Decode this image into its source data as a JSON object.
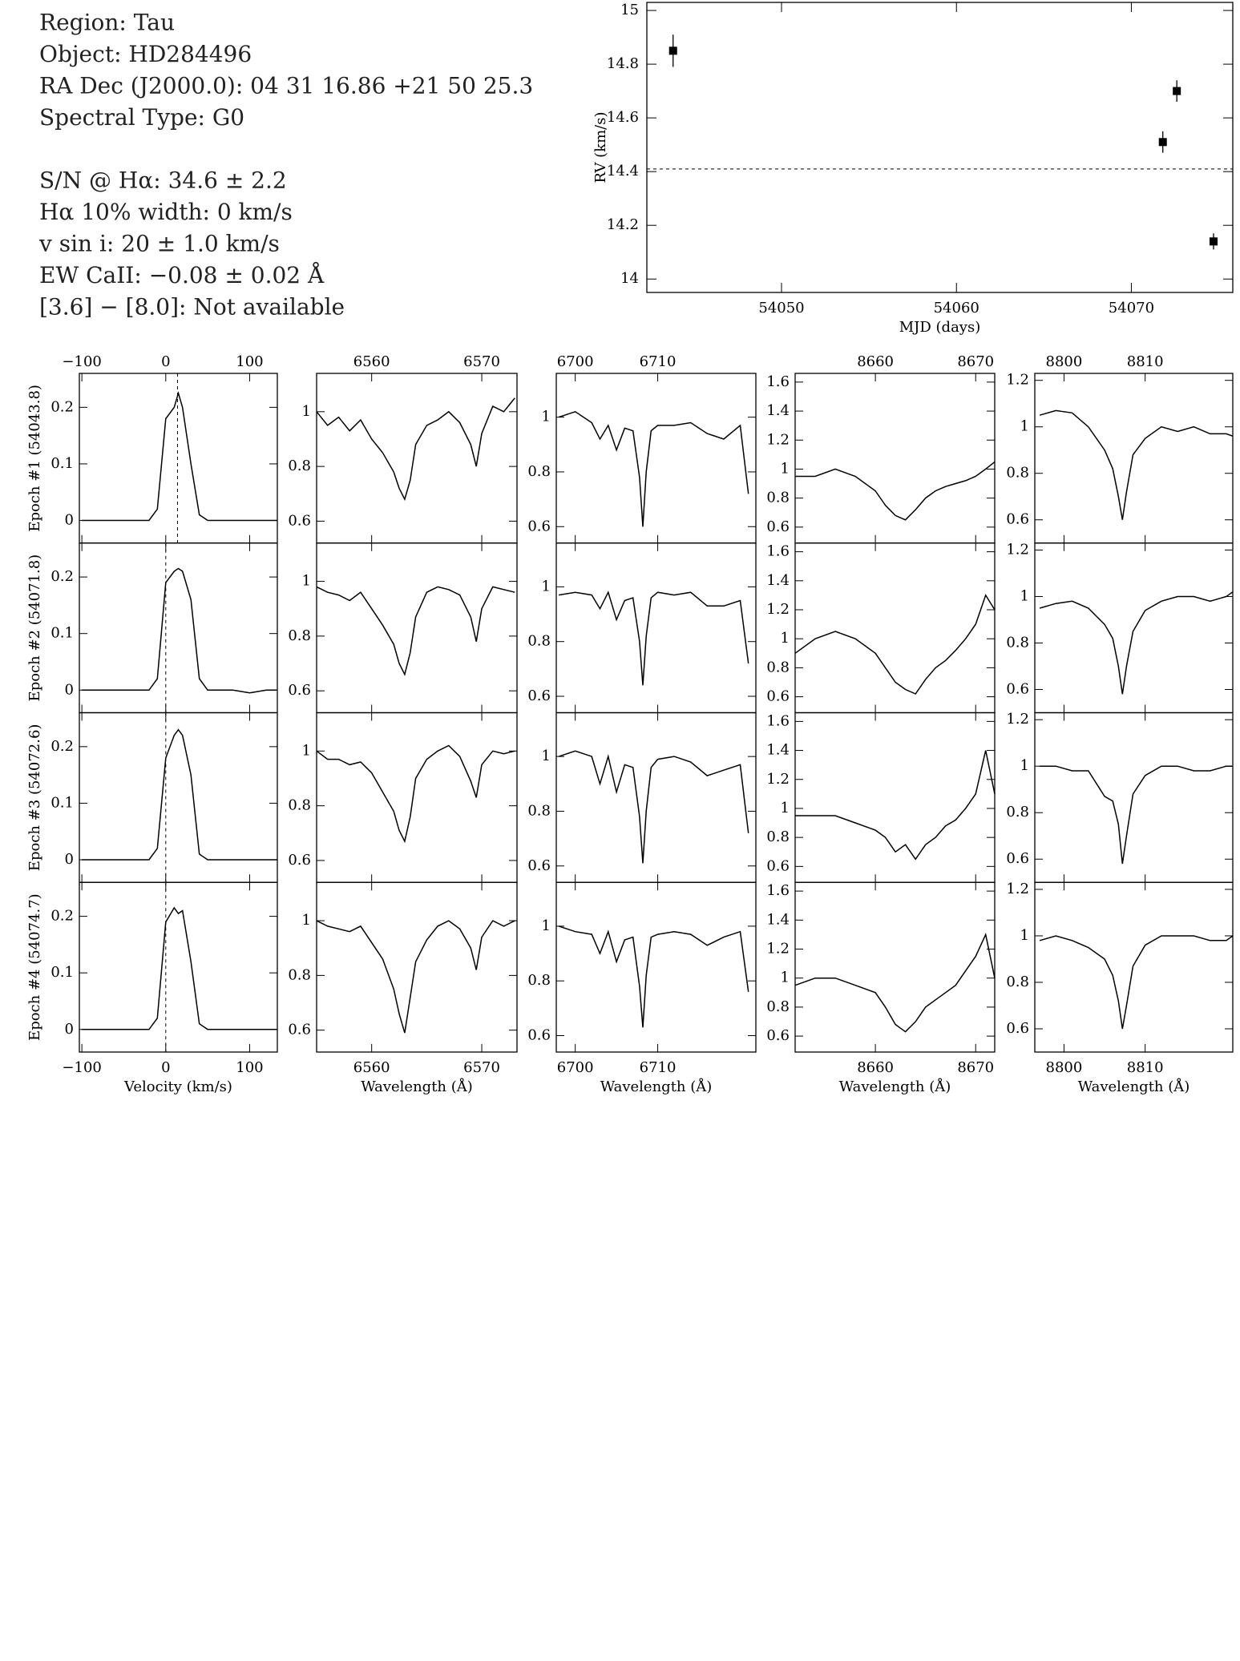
{
  "header": {
    "identification": [
      "Region: Tau",
      "Object: HD284496",
      "RA Dec (J2000.0): 04 31 16.86 +21 50 25.3",
      "Spectral Type: G0"
    ],
    "measurements": [
      "S/N @ Hα: 34.6 ± 2.2",
      "Hα 10% width: 0 km/s",
      "v sin i: 20 ± 1.0 km/s",
      "EW CaII: −0.08 ± 0.02 Å",
      "[3.6] − [8.0]: Not available"
    ]
  },
  "chart_data": [
    {
      "type": "scatter",
      "xlabel": "MJD (days)",
      "ylabel": "RV (km/s)",
      "color": "#000000",
      "x": [
        54043.8,
        54071.8,
        54072.6,
        54074.7
      ],
      "values": [
        14.85,
        14.51,
        14.7,
        14.14
      ],
      "errors": [
        0.06,
        0.04,
        0.04,
        0.03
      ],
      "hline": 14.41,
      "xlim": [
        54042.3,
        54075.8
      ],
      "xticks": [
        54050,
        54060,
        54070
      ],
      "ylim": [
        13.95,
        15.03
      ],
      "yticks": [
        14,
        14.2,
        14.4,
        14.6,
        14.8,
        15
      ]
    },
    {
      "type": "line",
      "xlabel": "Velocity (km/s)",
      "color": "#000000",
      "x": [
        -100,
        -80,
        -60,
        -40,
        -20,
        -10,
        0,
        10,
        15,
        20,
        30,
        40,
        50,
        60,
        80,
        100,
        120,
        133
      ],
      "series": [
        {
          "name": "Epoch #1 (54043.8)",
          "values": [
            0,
            0,
            0,
            0,
            0,
            0.02,
            0.18,
            0.2,
            0.225,
            0.2,
            0.1,
            0.01,
            0,
            0,
            0,
            0,
            0,
            0
          ]
        },
        {
          "name": "Epoch #2 (54071.8)",
          "values": [
            0,
            0,
            0,
            0,
            0,
            0.02,
            0.19,
            0.21,
            0.215,
            0.21,
            0.16,
            0.02,
            0,
            0,
            0,
            -0.005,
            0,
            0
          ]
        },
        {
          "name": "Epoch #3 (54072.6)",
          "values": [
            0,
            0,
            0,
            0,
            0,
            0.02,
            0.18,
            0.22,
            0.23,
            0.22,
            0.15,
            0.01,
            0,
            0,
            0,
            0,
            0,
            0
          ]
        },
        {
          "name": "Epoch #4 (54074.7)",
          "values": [
            0,
            0,
            0,
            0,
            0,
            0.02,
            0.19,
            0.215,
            0.205,
            0.21,
            0.12,
            0.01,
            0,
            0,
            0,
            0,
            0,
            0
          ]
        }
      ],
      "vlines": [
        14,
        0,
        0,
        0
      ],
      "xlim": [
        -103,
        133
      ],
      "xticks": [
        {
          "value": -100,
          "label": "−100"
        },
        0,
        100
      ],
      "ylim": [
        -0.04,
        0.26
      ],
      "yticks": [
        0,
        0.1,
        0.2
      ]
    },
    {
      "type": "line",
      "xlabel": "Wavelength (Å)",
      "color": "#000000",
      "x": [
        6555,
        6556,
        6557,
        6558,
        6559,
        6560,
        6561,
        6562,
        6562.5,
        6563,
        6563.5,
        6564,
        6565,
        6566,
        6567,
        6568,
        6569,
        6569.5,
        6570,
        6571,
        6572,
        6573
      ],
      "series": [
        {
          "values": [
            1.0,
            0.95,
            0.98,
            0.93,
            0.97,
            0.9,
            0.85,
            0.78,
            0.72,
            0.68,
            0.75,
            0.88,
            0.95,
            0.97,
            1.0,
            0.96,
            0.88,
            0.8,
            0.92,
            1.02,
            1.0,
            1.05
          ]
        },
        {
          "values": [
            0.98,
            0.96,
            0.95,
            0.93,
            0.96,
            0.9,
            0.84,
            0.77,
            0.7,
            0.66,
            0.74,
            0.87,
            0.96,
            0.98,
            0.97,
            0.95,
            0.87,
            0.78,
            0.9,
            0.98,
            0.97,
            0.96
          ]
        },
        {
          "values": [
            1.0,
            0.97,
            0.97,
            0.95,
            0.96,
            0.92,
            0.85,
            0.78,
            0.71,
            0.67,
            0.76,
            0.9,
            0.97,
            1.0,
            1.02,
            0.98,
            0.89,
            0.83,
            0.95,
            1.0,
            0.99,
            1.0
          ]
        },
        {
          "values": [
            1.0,
            0.98,
            0.97,
            0.96,
            0.98,
            0.92,
            0.86,
            0.75,
            0.66,
            0.59,
            0.72,
            0.85,
            0.93,
            0.98,
            1.0,
            0.97,
            0.9,
            0.82,
            0.94,
            1.0,
            0.98,
            1.0
          ]
        }
      ],
      "xlim": [
        6555,
        6573.2
      ],
      "xticks": [
        6560,
        6570
      ],
      "ylim": [
        0.52,
        1.14
      ],
      "yticks": [
        0.6,
        0.8,
        1
      ]
    },
    {
      "type": "line",
      "xlabel": "Wavelength (Å)",
      "color": "#000000",
      "x": [
        6698,
        6700,
        6702,
        6703,
        6704,
        6705,
        6706,
        6707,
        6707.8,
        6708.2,
        6708.6,
        6709.2,
        6710,
        6712,
        6714,
        6716,
        6718,
        6720,
        6721
      ],
      "series": [
        {
          "values": [
            1.0,
            1.02,
            0.98,
            0.92,
            0.97,
            0.88,
            0.96,
            0.95,
            0.78,
            0.6,
            0.8,
            0.95,
            0.97,
            0.97,
            0.98,
            0.94,
            0.92,
            0.97,
            0.72
          ]
        },
        {
          "values": [
            0.97,
            0.98,
            0.97,
            0.92,
            0.98,
            0.88,
            0.95,
            0.96,
            0.8,
            0.64,
            0.82,
            0.96,
            0.98,
            0.97,
            0.98,
            0.93,
            0.93,
            0.95,
            0.72
          ]
        },
        {
          "values": [
            1.0,
            1.02,
            1.0,
            0.9,
            1.0,
            0.87,
            0.97,
            0.96,
            0.78,
            0.61,
            0.8,
            0.96,
            0.99,
            1.0,
            0.98,
            0.93,
            0.95,
            0.97,
            0.72
          ]
        },
        {
          "values": [
            1.0,
            0.98,
            0.97,
            0.9,
            0.98,
            0.87,
            0.95,
            0.96,
            0.78,
            0.63,
            0.82,
            0.96,
            0.97,
            0.98,
            0.97,
            0.93,
            0.96,
            0.98,
            0.76
          ]
        }
      ],
      "xlim": [
        6697.7,
        6721.9
      ],
      "xticks": [
        6700,
        6710
      ],
      "ylim": [
        0.54,
        1.16
      ],
      "yticks": [
        0.6,
        0.8,
        1
      ]
    },
    {
      "type": "line",
      "xlabel": "Wavelength (Å)",
      "color": "#000000",
      "x": [
        8652,
        8654,
        8656,
        8658,
        8660,
        8661,
        8662,
        8663,
        8664,
        8665,
        8666,
        8667,
        8668,
        8669,
        8670,
        8671,
        8671.9
      ],
      "series": [
        {
          "values": [
            0.95,
            0.95,
            1.0,
            0.95,
            0.85,
            0.75,
            0.68,
            0.65,
            0.72,
            0.8,
            0.85,
            0.88,
            0.9,
            0.92,
            0.95,
            1.0,
            1.05
          ]
        },
        {
          "values": [
            0.9,
            1.0,
            1.05,
            1.0,
            0.9,
            0.8,
            0.7,
            0.65,
            0.62,
            0.72,
            0.8,
            0.85,
            0.92,
            1.0,
            1.1,
            1.3,
            1.2
          ]
        },
        {
          "values": [
            0.95,
            0.95,
            0.95,
            0.9,
            0.85,
            0.8,
            0.7,
            0.75,
            0.65,
            0.75,
            0.8,
            0.88,
            0.92,
            1.0,
            1.1,
            1.4,
            1.1
          ]
        },
        {
          "values": [
            0.95,
            1.0,
            1.0,
            0.95,
            0.9,
            0.8,
            0.68,
            0.63,
            0.7,
            0.8,
            0.85,
            0.9,
            0.95,
            1.05,
            1.15,
            1.3,
            1.0
          ]
        }
      ],
      "xlim": [
        8652,
        8671.9
      ],
      "xticks": [
        8660,
        8670
      ],
      "ylim": [
        0.49,
        1.66
      ],
      "yticks": [
        0.6,
        0.8,
        1,
        1.2,
        1.4,
        1.6
      ]
    },
    {
      "type": "line",
      "xlabel": "Wavelength (Å)",
      "color": "#000000",
      "x": [
        8797,
        8799,
        8801,
        8803,
        8805,
        8806,
        8806.7,
        8807.2,
        8807.7,
        8808.5,
        8810,
        8812,
        8814,
        8816,
        8818,
        8820,
        8820.8
      ],
      "series": [
        {
          "values": [
            1.05,
            1.07,
            1.06,
            1.0,
            0.9,
            0.82,
            0.7,
            0.6,
            0.72,
            0.88,
            0.95,
            1.0,
            0.98,
            1.0,
            0.97,
            0.97,
            0.96
          ]
        },
        {
          "values": [
            0.95,
            0.97,
            0.98,
            0.95,
            0.88,
            0.82,
            0.7,
            0.58,
            0.7,
            0.85,
            0.94,
            0.98,
            1.0,
            1.0,
            0.98,
            1.0,
            1.02
          ]
        },
        {
          "values": [
            1.0,
            1.0,
            0.98,
            0.98,
            0.87,
            0.85,
            0.75,
            0.58,
            0.7,
            0.88,
            0.96,
            1.0,
            1.0,
            0.98,
            0.98,
            1.0,
            1.0
          ]
        },
        {
          "values": [
            0.98,
            1.0,
            0.98,
            0.95,
            0.9,
            0.83,
            0.72,
            0.6,
            0.7,
            0.87,
            0.96,
            1.0,
            1.0,
            1.0,
            0.98,
            0.98,
            1.0
          ]
        }
      ],
      "xlim": [
        8796.4,
        8820.8
      ],
      "xticks": [
        8800,
        8810
      ],
      "ylim": [
        0.5,
        1.23
      ],
      "yticks": [
        0.6,
        0.8,
        1,
        1.2
      ]
    }
  ]
}
